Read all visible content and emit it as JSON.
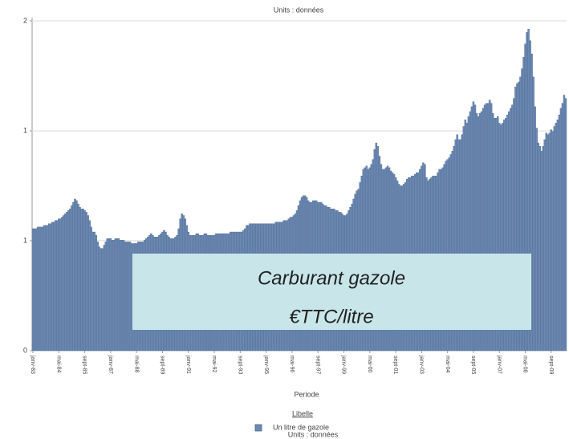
{
  "chart_data": {
    "type": "bar",
    "title": "Units : données",
    "x_label": "Periode",
    "legend_title": "Libelle",
    "annotations": [
      "Carburant gazole",
      "€TTC/litre"
    ],
    "annotation_color": "#c8e6ea",
    "grid": true,
    "ylim": [
      0,
      2
    ],
    "yticks": [
      0,
      {
        "value": 0.667,
        "label": "1"
      },
      {
        "value": 1.333,
        "label": "1"
      },
      2
    ],
    "categories": [
      "janv-83",
      null,
      null,
      null,
      null,
      null,
      null,
      null,
      null,
      null,
      null,
      null,
      null,
      null,
      null,
      null,
      "mai-84",
      null,
      null,
      null,
      null,
      null,
      null,
      null,
      null,
      null,
      null,
      null,
      null,
      null,
      null,
      null,
      "sept-85",
      null,
      null,
      null,
      null,
      null,
      null,
      null,
      null,
      null,
      null,
      null,
      null,
      null,
      null,
      null,
      "janv-87",
      null,
      null,
      null,
      null,
      null,
      null,
      null,
      null,
      null,
      null,
      null,
      null,
      null,
      null,
      null,
      "mai-88",
      null,
      null,
      null,
      null,
      null,
      null,
      null,
      null,
      null,
      null,
      null,
      null,
      null,
      null,
      null,
      "sept-89",
      null,
      null,
      null,
      null,
      null,
      null,
      null,
      null,
      null,
      null,
      null,
      null,
      null,
      null,
      null,
      "janv-91",
      null,
      null,
      null,
      null,
      null,
      null,
      null,
      null,
      null,
      null,
      null,
      null,
      null,
      null,
      null,
      "mai-92",
      null,
      null,
      null,
      null,
      null,
      null,
      null,
      null,
      null,
      null,
      null,
      null,
      null,
      null,
      null,
      "sept-93",
      null,
      null,
      null,
      null,
      null,
      null,
      null,
      null,
      null,
      null,
      null,
      null,
      null,
      null,
      null,
      "janv-95",
      null,
      null,
      null,
      null,
      null,
      null,
      null,
      null,
      null,
      null,
      null,
      null,
      null,
      null,
      null,
      "mai-96",
      null,
      null,
      null,
      null,
      null,
      null,
      null,
      null,
      null,
      null,
      null,
      null,
      null,
      null,
      null,
      "sept-97",
      null,
      null,
      null,
      null,
      null,
      null,
      null,
      null,
      null,
      null,
      null,
      null,
      null,
      null,
      null,
      "janv-99",
      null,
      null,
      null,
      null,
      null,
      null,
      null,
      null,
      null,
      null,
      null,
      null,
      null,
      null,
      null,
      "mai-00",
      null,
      null,
      null,
      null,
      null,
      null,
      null,
      null,
      null,
      null,
      null,
      null,
      null,
      null,
      null,
      "sept-01",
      null,
      null,
      null,
      null,
      null,
      null,
      null,
      null,
      null,
      null,
      null,
      null,
      null,
      null,
      null,
      "janv-03",
      null,
      null,
      null,
      null,
      null,
      null,
      null,
      null,
      null,
      null,
      null,
      null,
      null,
      null,
      null,
      "mai-04",
      null,
      null,
      null,
      null,
      null,
      null,
      null,
      null,
      null,
      null,
      null,
      null,
      null,
      null,
      null,
      "sept-05",
      null,
      null,
      null,
      null,
      null,
      null,
      null,
      null,
      null,
      null,
      null,
      null,
      null,
      null,
      null,
      "janv-07",
      null,
      null,
      null,
      null,
      null,
      null,
      null,
      null,
      null,
      null,
      null,
      null,
      null,
      null,
      null,
      "mai-08",
      null,
      null,
      null,
      null,
      null,
      null,
      null,
      null,
      null,
      null,
      null,
      null,
      null,
      null,
      null,
      "sept-09",
      null,
      null,
      null,
      null,
      null,
      null,
      null,
      null,
      null
    ],
    "series": [
      {
        "name": "Un litre de gazole",
        "color": "#6c89b2",
        "values": [
          0.74,
          0.74,
          0.74,
          0.75,
          0.75,
          0.75,
          0.75,
          0.76,
          0.76,
          0.76,
          0.77,
          0.77,
          0.78,
          0.78,
          0.79,
          0.79,
          0.8,
          0.8,
          0.81,
          0.82,
          0.83,
          0.84,
          0.85,
          0.86,
          0.88,
          0.9,
          0.92,
          0.91,
          0.89,
          0.87,
          0.86,
          0.86,
          0.85,
          0.84,
          0.82,
          0.79,
          0.75,
          0.72,
          0.72,
          0.7,
          0.66,
          0.63,
          0.62,
          0.62,
          0.64,
          0.66,
          0.68,
          0.68,
          0.68,
          0.67,
          0.67,
          0.68,
          0.68,
          0.68,
          0.67,
          0.67,
          0.67,
          0.66,
          0.66,
          0.66,
          0.66,
          0.65,
          0.65,
          0.65,
          0.65,
          0.66,
          0.66,
          0.66,
          0.66,
          0.67,
          0.68,
          0.69,
          0.7,
          0.71,
          0.7,
          0.69,
          0.69,
          0.69,
          0.7,
          0.71,
          0.72,
          0.73,
          0.72,
          0.7,
          0.69,
          0.68,
          0.68,
          0.68,
          0.69,
          0.7,
          0.74,
          0.8,
          0.83,
          0.82,
          0.8,
          0.76,
          0.72,
          0.7,
          0.7,
          0.7,
          0.7,
          0.71,
          0.71,
          0.7,
          0.7,
          0.7,
          0.71,
          0.71,
          0.7,
          0.7,
          0.7,
          0.7,
          0.7,
          0.71,
          0.71,
          0.71,
          0.71,
          0.71,
          0.71,
          0.71,
          0.71,
          0.71,
          0.72,
          0.72,
          0.72,
          0.72,
          0.72,
          0.72,
          0.72,
          0.72,
          0.73,
          0.74,
          0.76,
          0.76,
          0.77,
          0.77,
          0.77,
          0.77,
          0.77,
          0.77,
          0.77,
          0.77,
          0.77,
          0.77,
          0.77,
          0.77,
          0.77,
          0.77,
          0.77,
          0.77,
          0.78,
          0.78,
          0.78,
          0.78,
          0.78,
          0.79,
          0.79,
          0.79,
          0.8,
          0.81,
          0.81,
          0.82,
          0.83,
          0.85,
          0.88,
          0.91,
          0.93,
          0.94,
          0.94,
          0.93,
          0.91,
          0.9,
          0.9,
          0.91,
          0.91,
          0.91,
          0.9,
          0.9,
          0.9,
          0.89,
          0.88,
          0.88,
          0.87,
          0.87,
          0.86,
          0.86,
          0.86,
          0.85,
          0.85,
          0.84,
          0.84,
          0.83,
          0.82,
          0.82,
          0.83,
          0.85,
          0.87,
          0.89,
          0.92,
          0.95,
          0.97,
          0.98,
          1.02,
          1.06,
          1.1,
          1.11,
          1.12,
          1.1,
          1.11,
          1.13,
          1.16,
          1.22,
          1.26,
          1.24,
          1.18,
          1.13,
          1.1,
          1.1,
          1.11,
          1.12,
          1.11,
          1.09,
          1.08,
          1.07,
          1.05,
          1.03,
          1.01,
          1.0,
          1.0,
          1.01,
          1.02,
          1.04,
          1.05,
          1.05,
          1.06,
          1.06,
          1.07,
          1.08,
          1.08,
          1.1,
          1.12,
          1.14,
          1.13,
          1.05,
          1.03,
          1.04,
          1.05,
          1.06,
          1.06,
          1.06,
          1.08,
          1.1,
          1.1,
          1.11,
          1.13,
          1.15,
          1.16,
          1.17,
          1.19,
          1.21,
          1.24,
          1.28,
          1.31,
          1.28,
          1.28,
          1.31,
          1.36,
          1.4,
          1.38,
          1.42,
          1.45,
          1.48,
          1.51,
          1.49,
          1.44,
          1.42,
          1.44,
          1.45,
          1.47,
          1.49,
          1.5,
          1.5,
          1.52,
          1.5,
          1.44,
          1.41,
          1.41,
          1.42,
          1.38,
          1.37,
          1.38,
          1.4,
          1.41,
          1.43,
          1.45,
          1.47,
          1.49,
          1.53,
          1.6,
          1.62,
          1.63,
          1.66,
          1.71,
          1.78,
          1.86,
          1.93,
          1.95,
          1.88,
          1.8,
          1.66,
          1.48,
          1.35,
          1.26,
          1.24,
          1.21,
          1.24,
          1.28,
          1.32,
          1.31,
          1.32,
          1.34,
          1.33,
          1.36,
          1.38,
          1.4,
          1.43,
          1.47,
          1.5,
          1.55,
          1.53
        ]
      }
    ]
  }
}
